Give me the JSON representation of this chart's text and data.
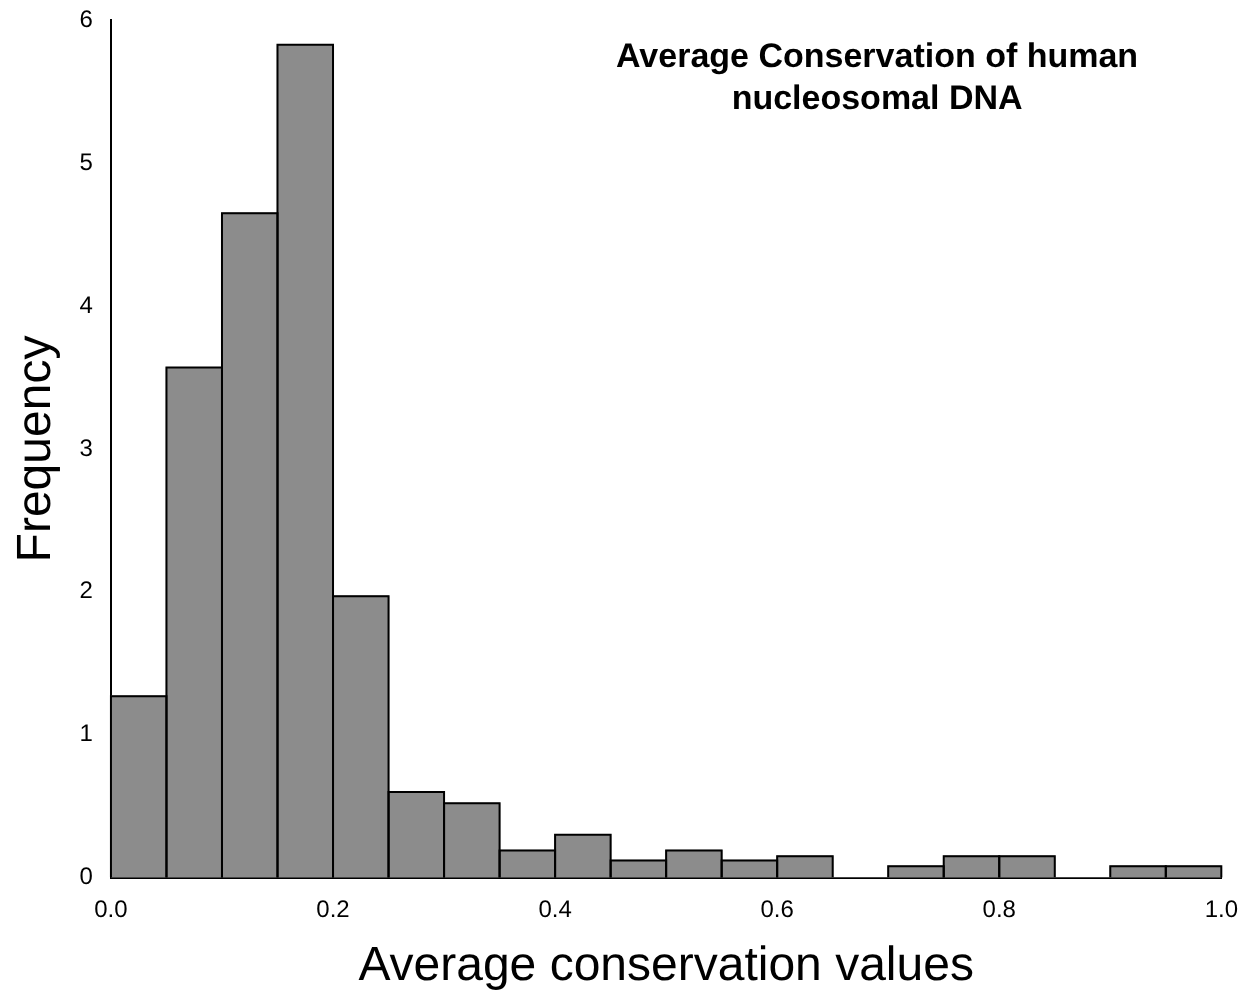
{
  "chart_data": {
    "type": "histogram",
    "title": "Average Conservation of human nucleosomal DNA",
    "xlabel": "Average conservation values",
    "ylabel": "Frequency",
    "bins": [
      0,
      0.05,
      0.1,
      0.15,
      0.2,
      0.25,
      0.3,
      0.35,
      0.4,
      0.45,
      0.5,
      0.55,
      0.6,
      0.65,
      0.7,
      0.75,
      0.8,
      0.85,
      0.9,
      0.95,
      1.0
    ],
    "values": [
      1.27,
      3.57,
      4.65,
      5.83,
      1.97,
      0.6,
      0.52,
      0.19,
      0.3,
      0.12,
      0.19,
      0.12,
      0.15,
      0,
      0.08,
      0.15,
      0.15,
      0,
      0.08,
      0.08
    ],
    "color": "#8c8c8c",
    "xlim": [
      0,
      1
    ],
    "xticks": [
      {
        "value": 0,
        "label": "0.0"
      },
      {
        "value": 0.2,
        "label": "0.2"
      },
      {
        "value": 0.4,
        "label": "0.4"
      },
      {
        "value": 0.6,
        "label": "0.6"
      },
      {
        "value": 0.8,
        "label": "0.8"
      },
      {
        "value": 1,
        "label": "1.0"
      }
    ],
    "ylim": [
      0,
      6
    ],
    "yticks": [
      0,
      1,
      2,
      3,
      4,
      5,
      6
    ],
    "grid": false,
    "legend": false
  }
}
